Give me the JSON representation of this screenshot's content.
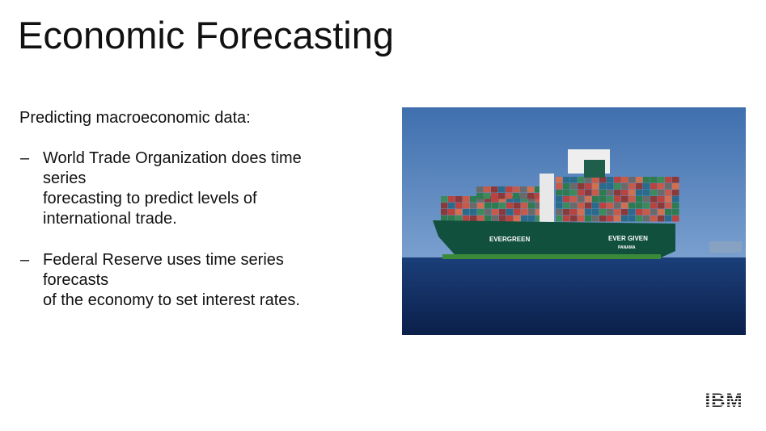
{
  "title": "Economic Forecasting",
  "intro": "Predicting macroeconomic data:",
  "bullets": [
    {
      "marker": "–",
      "lines": [
        "World Trade Organization does time",
        "series",
        "forecasting to predict levels of",
        "international trade."
      ]
    },
    {
      "marker": "–",
      "lines": [
        "Federal Reserve uses time series",
        "forecasts",
        "of the economy to set interest rates."
      ]
    }
  ],
  "image": {
    "ship_name": "EVER GIVEN",
    "company": "EVERGREEN",
    "port": "PANAMA"
  },
  "logo": "IBM"
}
